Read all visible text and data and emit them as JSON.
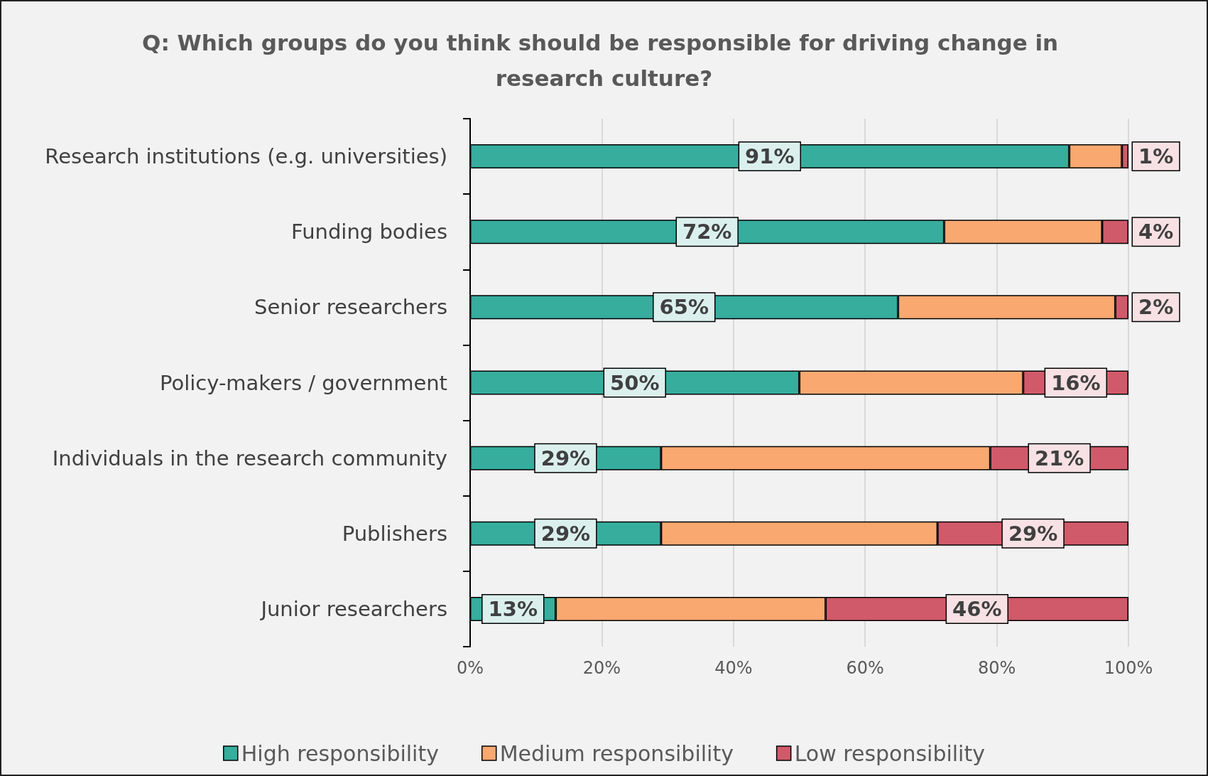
{
  "chart_data": {
    "type": "bar",
    "orientation": "horizontal",
    "stacked": true,
    "title": "Q: Which groups do you think should be responsible for driving change in research culture?",
    "categories": [
      "Research institutions (e.g. universities)",
      "Funding bodies",
      "Senior researchers",
      "Policy-makers / government",
      "Individuals in the research community",
      "Publishers",
      "Junior researchers"
    ],
    "series": [
      {
        "name": "High responsibility",
        "color": "#36ad9d",
        "values": [
          91,
          72,
          65,
          50,
          29,
          29,
          13
        ],
        "value_labels": [
          "91%",
          "72%",
          "65%",
          "50%",
          "29%",
          "29%",
          "13%"
        ]
      },
      {
        "name": "Medium responsibility",
        "color": "#f9a870",
        "values": [
          8,
          24,
          33,
          34,
          50,
          42,
          41
        ]
      },
      {
        "name": "Low responsibility",
        "color": "#d05a6a",
        "values": [
          1,
          4,
          2,
          16,
          21,
          29,
          46
        ],
        "value_labels": [
          "1%",
          "4%",
          "2%",
          "16%",
          "21%",
          "29%",
          "46%"
        ]
      }
    ],
    "xlim": [
      0,
      100
    ],
    "xticks": [
      {
        "value": 0,
        "label": "0%"
      },
      {
        "value": 20,
        "label": "20%"
      },
      {
        "value": 40,
        "label": "40%"
      },
      {
        "value": 60,
        "label": "60%"
      },
      {
        "value": 80,
        "label": "80%"
      },
      {
        "value": 100,
        "label": "100%"
      }
    ],
    "grid": "x",
    "legend": "bottom"
  }
}
